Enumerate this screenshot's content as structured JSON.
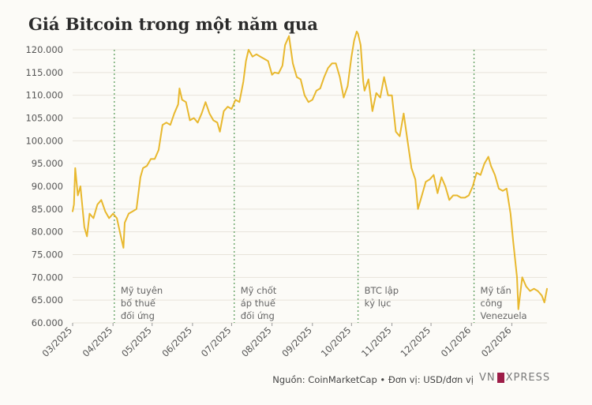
{
  "title": "Giá Bitcoin trong một năm qua",
  "source_text": "Nguồn: CoinMarketCap • Đơn vị: USD/đơn vị",
  "logo_text": "VNEXPRESS",
  "colors": {
    "line": "#e8b82e",
    "marker": "#5e9e5e",
    "grid": "#e7e3da",
    "axis_text": "#555555",
    "background": "#fcfbf7",
    "logo_accent": "#9d1d48"
  },
  "chart_data": {
    "type": "line",
    "title": "Giá Bitcoin trong một năm qua",
    "xlabel": "",
    "ylabel": "",
    "ylim": [
      60000,
      120000
    ],
    "xlim": [
      "2025-03-01",
      "2026-02-28"
    ],
    "y_ticks": [
      60000,
      65000,
      70000,
      75000,
      80000,
      85000,
      90000,
      95000,
      100000,
      105000,
      110000,
      115000,
      120000
    ],
    "y_tick_labels": [
      "60.000",
      "65.000",
      "70.000",
      "75.000",
      "80.000",
      "85.000",
      "90.000",
      "95.000",
      "100.000",
      "105.000",
      "110.000",
      "115.000",
      "120.000"
    ],
    "x_ticks": [
      "2025-03-01",
      "2025-04-01",
      "2025-05-01",
      "2025-06-01",
      "2025-07-01",
      "2025-08-01",
      "2025-09-01",
      "2025-10-01",
      "2025-11-01",
      "2025-12-01",
      "2026-01-01",
      "2026-02-01"
    ],
    "x_tick_labels": [
      "03/2025",
      "04/2025",
      "05/2025",
      "06/2025",
      "07/2025",
      "08/2025",
      "09/2025",
      "10/2025",
      "11/2025",
      "12/2025",
      "01/2026",
      "02/2026"
    ],
    "grid": "horizontal",
    "series": [
      {
        "x": [
          "2025-03-01",
          "2025-03-02",
          "2025-03-03",
          "2025-03-05",
          "2025-03-07",
          "2025-03-10",
          "2025-03-12",
          "2025-03-14",
          "2025-03-17",
          "2025-03-20",
          "2025-03-23",
          "2025-03-26",
          "2025-03-29",
          "2025-04-01",
          "2025-04-04",
          "2025-04-07",
          "2025-04-09",
          "2025-04-10",
          "2025-04-13",
          "2025-04-16",
          "2025-04-19",
          "2025-04-22",
          "2025-04-24",
          "2025-04-27",
          "2025-04-30",
          "2025-05-03",
          "2025-05-06",
          "2025-05-09",
          "2025-05-12",
          "2025-05-15",
          "2025-05-18",
          "2025-05-21",
          "2025-05-22",
          "2025-05-24",
          "2025-05-27",
          "2025-05-30",
          "2025-06-02",
          "2025-06-05",
          "2025-06-08",
          "2025-06-11",
          "2025-06-14",
          "2025-06-17",
          "2025-06-20",
          "2025-06-22",
          "2025-06-25",
          "2025-06-28",
          "2025-07-01",
          "2025-07-04",
          "2025-07-07",
          "2025-07-10",
          "2025-07-12",
          "2025-07-14",
          "2025-07-17",
          "2025-07-20",
          "2025-07-23",
          "2025-07-26",
          "2025-07-29",
          "2025-08-01",
          "2025-08-03",
          "2025-08-06",
          "2025-08-09",
          "2025-08-11",
          "2025-08-14",
          "2025-08-17",
          "2025-08-20",
          "2025-08-23",
          "2025-08-26",
          "2025-08-29",
          "2025-09-01",
          "2025-09-04",
          "2025-09-07",
          "2025-09-10",
          "2025-09-13",
          "2025-09-16",
          "2025-09-19",
          "2025-09-22",
          "2025-09-25",
          "2025-09-28",
          "2025-10-01",
          "2025-10-03",
          "2025-10-05",
          "2025-10-06",
          "2025-10-08",
          "2025-10-10",
          "2025-10-11",
          "2025-10-14",
          "2025-10-17",
          "2025-10-20",
          "2025-10-23",
          "2025-10-26",
          "2025-10-29",
          "2025-11-01",
          "2025-11-04",
          "2025-11-07",
          "2025-11-10",
          "2025-11-13",
          "2025-11-16",
          "2025-11-19",
          "2025-11-21",
          "2025-11-24",
          "2025-11-27",
          "2025-11-30",
          "2025-12-03",
          "2025-12-06",
          "2025-12-09",
          "2025-12-12",
          "2025-12-15",
          "2025-12-18",
          "2025-12-21",
          "2025-12-24",
          "2025-12-27",
          "2025-12-30",
          "2026-01-02",
          "2026-01-05",
          "2026-01-08",
          "2026-01-11",
          "2026-01-14",
          "2026-01-16",
          "2026-01-19",
          "2026-01-22",
          "2026-01-25",
          "2026-01-28",
          "2026-01-31",
          "2026-02-02",
          "2026-02-05",
          "2026-02-06",
          "2026-02-09",
          "2026-02-12",
          "2026-02-15",
          "2026-02-18",
          "2026-02-21",
          "2026-02-24",
          "2026-02-26",
          "2026-02-28"
        ],
        "values": [
          84500,
          86000,
          94000,
          88000,
          90000,
          81000,
          79000,
          84000,
          83000,
          86000,
          87000,
          84500,
          83000,
          84000,
          83000,
          79000,
          76500,
          82000,
          84000,
          84500,
          85000,
          92000,
          94000,
          94500,
          96000,
          96000,
          98000,
          103500,
          104000,
          103500,
          106000,
          108000,
          111500,
          109000,
          108500,
          104500,
          105000,
          104000,
          106000,
          108500,
          106000,
          104500,
          104000,
          102000,
          106500,
          107500,
          107000,
          109000,
          108500,
          113000,
          117500,
          120000,
          118500,
          119000,
          118500,
          118000,
          117500,
          114500,
          115000,
          114800,
          116500,
          121000,
          123000,
          117000,
          114000,
          113500,
          110000,
          108500,
          109000,
          111000,
          111500,
          114000,
          116000,
          117000,
          117000,
          114000,
          109500,
          112000,
          118500,
          122000,
          124000,
          123500,
          121000,
          113000,
          111000,
          113500,
          106500,
          110500,
          109500,
          114000,
          110000,
          110000,
          102000,
          101000,
          106000,
          100000,
          94000,
          91500,
          85000,
          88000,
          91000,
          91500,
          92500,
          88500,
          92000,
          90000,
          87000,
          88000,
          88000,
          87500,
          87500,
          88000,
          90000,
          93000,
          92500,
          95000,
          96500,
          94500,
          92500,
          89500,
          89000,
          89500,
          84000,
          78000,
          70000,
          63000,
          70000,
          68000,
          67000,
          67500,
          67000,
          66000,
          64500,
          67500
        ],
        "name": ""
      }
    ],
    "annotations": [
      {
        "date": "2025-04-02",
        "lines": [
          "Mỹ tuyên",
          "bố thuế",
          "đối ứng"
        ]
      },
      {
        "date": "2025-07-03",
        "lines": [
          "Mỹ chốt",
          "áp thuế",
          "đối ứng"
        ]
      },
      {
        "date": "2025-10-06",
        "lines": [
          "BTC lập",
          "kỷ lục"
        ]
      },
      {
        "date": "2026-01-03",
        "lines": [
          "Mỹ tấn",
          "công",
          "Venezuela"
        ]
      }
    ]
  }
}
